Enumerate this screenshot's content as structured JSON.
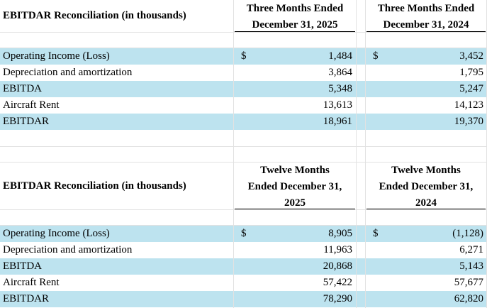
{
  "section1": {
    "title": "EBITDAR Reconciliation (in thousands)",
    "col1_header": [
      "Three Months Ended",
      "December 31, 2025"
    ],
    "col2_header": [
      "Three Months Ended",
      "December 31, 2024"
    ],
    "rows": [
      {
        "label": "Operating Income (Loss)",
        "cur1": "$",
        "v1": "1,484",
        "cur2": "$",
        "v2": "3,452"
      },
      {
        "label": "Depreciation and amortization",
        "cur1": "",
        "v1": "3,864",
        "cur2": "",
        "v2": "1,795"
      },
      {
        "label": "EBITDA",
        "cur1": "",
        "v1": "5,348",
        "cur2": "",
        "v2": "5,247"
      },
      {
        "label": "Aircraft Rent",
        "cur1": "",
        "v1": "13,613",
        "cur2": "",
        "v2": "14,123"
      },
      {
        "label": "EBITDAR",
        "cur1": "",
        "v1": "18,961",
        "cur2": "",
        "v2": "19,370"
      }
    ]
  },
  "section2": {
    "title": "EBITDAR Reconciliation (in thousands)",
    "col1_header": [
      "Twelve Months",
      "Ended December 31,",
      "2025"
    ],
    "col2_header": [
      "Twelve Months",
      "Ended December 31,",
      "2024"
    ],
    "rows": [
      {
        "label": "Operating Income (Loss)",
        "cur1": "$",
        "v1": "8,905",
        "cur2": "$",
        "v2": "(1,128)"
      },
      {
        "label": "Depreciation and amortization",
        "cur1": "",
        "v1": "11,963",
        "cur2": "",
        "v2": "6,271"
      },
      {
        "label": "EBITDA",
        "cur1": "",
        "v1": "20,868",
        "cur2": "",
        "v2": "5,143"
      },
      {
        "label": "Aircraft Rent",
        "cur1": "",
        "v1": "57,422",
        "cur2": "",
        "v2": "57,677"
      },
      {
        "label": "EBITDAR",
        "cur1": "",
        "v1": "78,290",
        "cur2": "",
        "v2": "62,820"
      }
    ]
  },
  "colors": {
    "band": "#bde3ef",
    "gridline": "#e2e2e2"
  }
}
